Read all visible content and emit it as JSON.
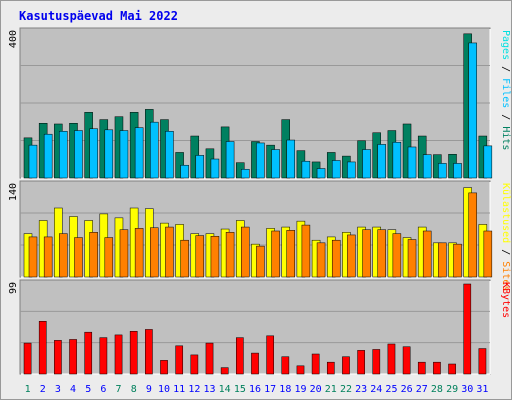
{
  "title": "Kasutuspäevad Mai 2022",
  "colors": {
    "hits": "#008060",
    "files": "#00c0ff",
    "pages": "#00e0e0",
    "visits": "#ffff00",
    "sites": "#ff8000",
    "kbytes": "#ff0000",
    "weekend": "#00805c",
    "weekday": "#0000ff",
    "panel": "#c0c0c0",
    "grid": "#999999"
  },
  "chart_data": [
    {
      "type": "bar",
      "title": "",
      "ylim": [
        0,
        400
      ],
      "y_tick_label": "400",
      "categories": [
        "1",
        "2",
        "3",
        "4",
        "5",
        "6",
        "7",
        "8",
        "9",
        "10",
        "11",
        "12",
        "13",
        "14",
        "15",
        "16",
        "17",
        "18",
        "19",
        "20",
        "21",
        "22",
        "23",
        "24",
        "25",
        "26",
        "27",
        "28",
        "29",
        "30",
        "31"
      ],
      "weekend_days": [
        1,
        7,
        8,
        14,
        15,
        21,
        22,
        28,
        29
      ],
      "series": [
        {
          "name": "Hits",
          "values": [
            110,
            150,
            148,
            150,
            180,
            160,
            168,
            180,
            188,
            160,
            70,
            115,
            80,
            140,
            42,
            100,
            90,
            160,
            75,
            44,
            70,
            60,
            102,
            124,
            130,
            148,
            115,
            64,
            65,
            395,
            115
          ]
        },
        {
          "name": "Files",
          "values": [
            90,
            120,
            128,
            130,
            135,
            132,
            130,
            138,
            153,
            128,
            35,
            62,
            52,
            100,
            24,
            96,
            78,
            104,
            46,
            26,
            48,
            44,
            78,
            92,
            98,
            85,
            64,
            40,
            40,
            370,
            88
          ]
        },
        {
          "name": "Pages",
          "values": [
            8,
            4,
            6,
            7,
            8,
            6,
            8,
            7,
            8,
            6,
            4,
            5,
            4,
            6,
            3,
            5,
            4,
            6,
            4,
            3,
            4,
            4,
            5,
            5,
            6,
            5,
            4,
            3,
            3,
            20,
            6
          ]
        }
      ],
      "side_label": [
        "Hits",
        "Files",
        "Pages"
      ]
    },
    {
      "type": "bar",
      "ylim": [
        0,
        140
      ],
      "y_tick_label": "140",
      "series": [
        {
          "name": "Visits",
          "values": [
            66,
            86,
            105,
            92,
            86,
            96,
            90,
            105,
            104,
            82,
            80,
            66,
            66,
            73,
            86,
            50,
            74,
            76,
            85,
            56,
            61,
            68,
            76,
            76,
            72,
            60,
            76,
            52,
            52,
            136,
            80
          ]
        },
        {
          "name": "Sites",
          "values": [
            61,
            61,
            66,
            60,
            68,
            60,
            72,
            74,
            75,
            76,
            56,
            63,
            62,
            68,
            76,
            47,
            70,
            71,
            79,
            52,
            56,
            64,
            72,
            72,
            66,
            57,
            70,
            52,
            50,
            128,
            70
          ]
        }
      ],
      "side_label": [
        "Sites",
        "Külastused"
      ]
    },
    {
      "type": "bar",
      "ylim": [
        0,
        99
      ],
      "y_tick_label": "99",
      "series": [
        {
          "name": "KBytes",
          "values": [
            34,
            58,
            37,
            38,
            46,
            40,
            43,
            47,
            49,
            15,
            31,
            21,
            34,
            7,
            40,
            23,
            42,
            19,
            9,
            22,
            13,
            19,
            26,
            27,
            33,
            30,
            13,
            13,
            11,
            99,
            28
          ]
        }
      ],
      "side_label": [
        "KBytes"
      ]
    }
  ]
}
